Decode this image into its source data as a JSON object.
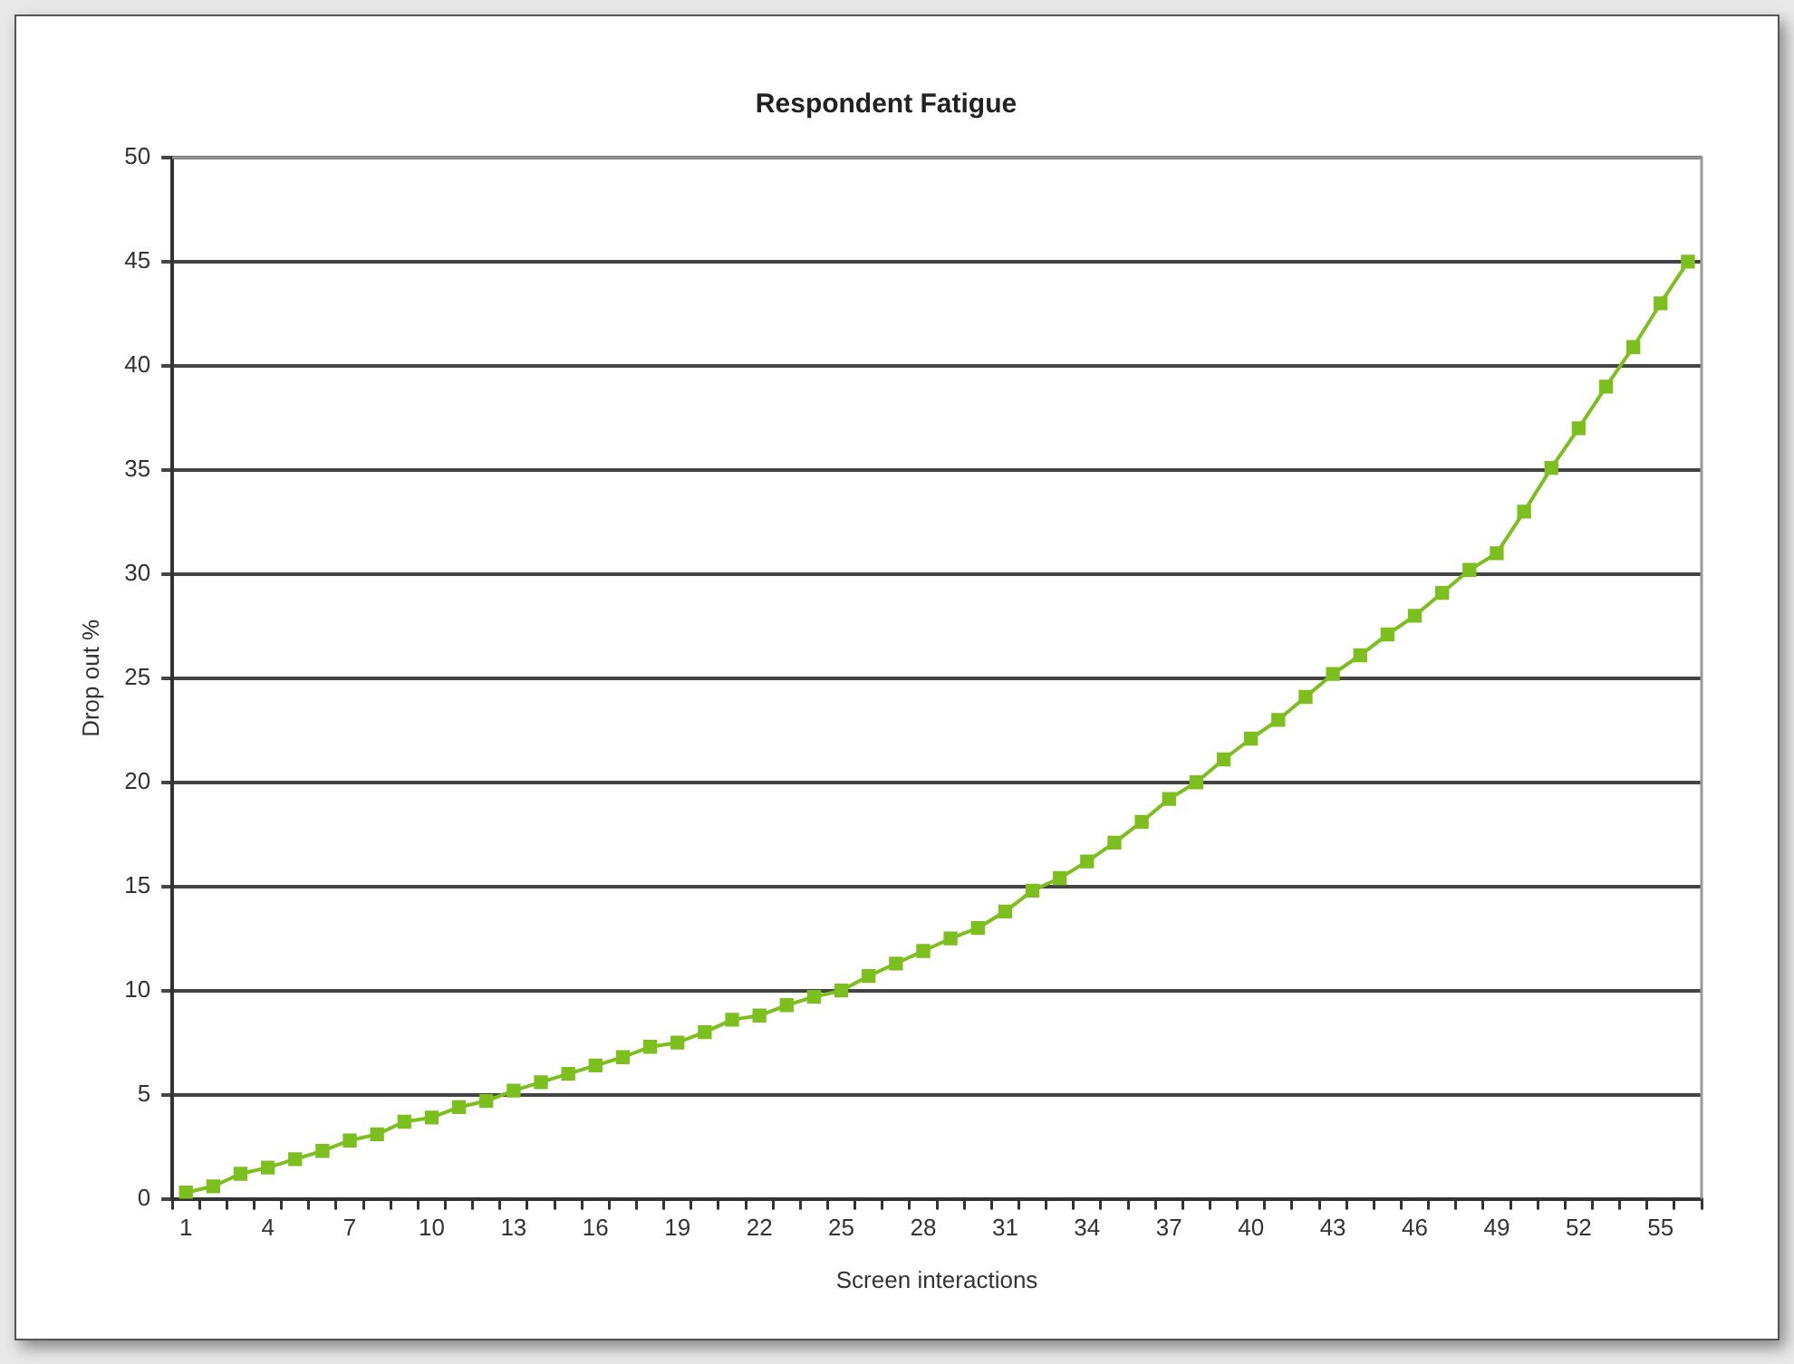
{
  "chart_data": {
    "type": "line",
    "title": "Respondent Fatigue",
    "xlabel": "Screen interactions",
    "ylabel": "Drop out %",
    "categories": [
      "1",
      null,
      null,
      "4",
      null,
      null,
      "7",
      null,
      null,
      "10",
      null,
      null,
      "13",
      null,
      null,
      "16",
      null,
      null,
      "19",
      null,
      null,
      "22",
      null,
      null,
      "25",
      null,
      null,
      "28",
      null,
      null,
      "31",
      null,
      null,
      "34",
      null,
      null,
      "37",
      null,
      null,
      "40",
      null,
      null,
      "43",
      null,
      null,
      "46",
      null,
      null,
      "49",
      null,
      null,
      "52",
      null,
      null,
      "55",
      null
    ],
    "series": [
      {
        "color": "#7cbf1e",
        "values": [
          0.3,
          0.6,
          1.2,
          1.5,
          1.9,
          2.3,
          2.8,
          3.1,
          3.7,
          3.9,
          4.4,
          4.7,
          5.2,
          5.6,
          6.0,
          6.4,
          6.8,
          7.3,
          7.5,
          8.0,
          8.6,
          8.8,
          9.3,
          9.7,
          10.0,
          10.7,
          11.3,
          11.9,
          12.5,
          13.0,
          13.8,
          14.8,
          15.4,
          16.2,
          17.1,
          18.1,
          19.2,
          20.0,
          21.1,
          22.1,
          23.0,
          24.1,
          25.2,
          26.1,
          27.1,
          28.0,
          29.1,
          30.2,
          31.0,
          33.0,
          35.1,
          37.0,
          39.0,
          40.9,
          43.0,
          45.0
        ]
      }
    ],
    "ylim": [
      0,
      50
    ],
    "yticks": [
      0,
      5,
      10,
      15,
      20,
      25,
      30,
      35,
      40,
      45,
      50
    ],
    "grid": "y",
    "marker": "square"
  }
}
